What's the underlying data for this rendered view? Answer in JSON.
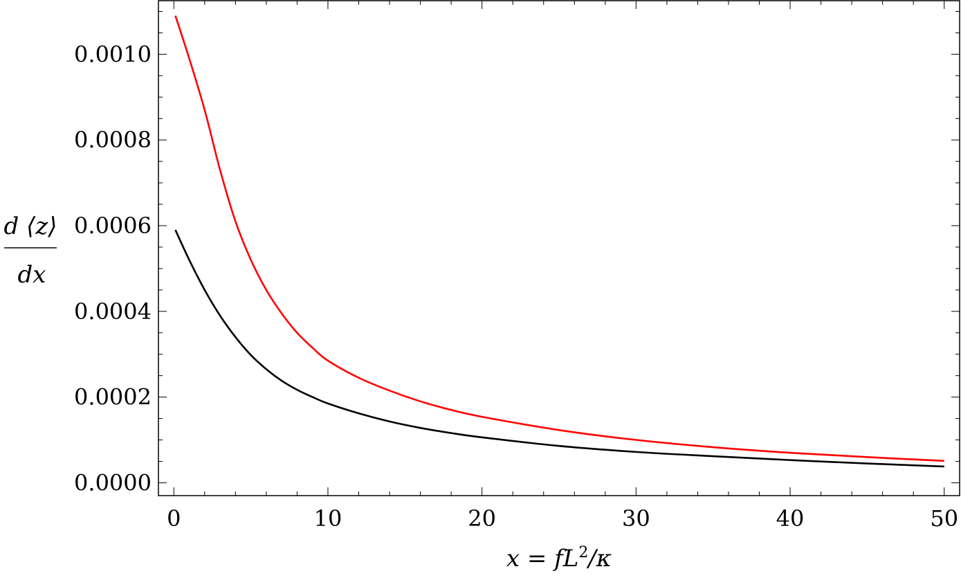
{
  "chart_data": {
    "type": "line",
    "title": "",
    "xlabel_parts": {
      "main": "x = fL",
      "sup": "2",
      "tail": "/κ"
    },
    "ylabel_parts": {
      "numerator": "d ⟨z⟩",
      "denominator": "dx"
    },
    "xlim": [
      -1,
      51
    ],
    "ylim": [
      -3e-05,
      0.001125
    ],
    "x_ticks": [
      0,
      10,
      20,
      30,
      40,
      50
    ],
    "x_tick_labels": [
      "0",
      "10",
      "20",
      "30",
      "40",
      "50"
    ],
    "y_ticks": [
      0,
      0.0002,
      0.0004,
      0.0006,
      0.0008,
      0.001
    ],
    "y_tick_labels": [
      "0.0000",
      "0.0002",
      "0.0004",
      "0.0006",
      "0.0008",
      "0.0010"
    ],
    "grid": false,
    "legend": "none",
    "series": [
      {
        "color": "#ff0000",
        "x": [
          0.1,
          1,
          2,
          3,
          4,
          5,
          6,
          7,
          8,
          9,
          10,
          12,
          14,
          16,
          18,
          20,
          25,
          30,
          35,
          40,
          45,
          50
        ],
        "y": [
          0.00109,
          0.00099,
          0.00087,
          0.00073,
          0.00061,
          0.00052,
          0.00045,
          0.000395,
          0.00035,
          0.000315,
          0.000285,
          0.000245,
          0.000215,
          0.00019,
          0.00017,
          0.000154,
          0.000123,
          0.0001,
          8.3e-05,
          7e-05,
          6e-05,
          5.1e-05
        ]
      },
      {
        "color": "#000000",
        "x": [
          0.1,
          1,
          2,
          3,
          4,
          5,
          6,
          7,
          8,
          9,
          10,
          12,
          14,
          16,
          18,
          20,
          25,
          30,
          35,
          40,
          45,
          50
        ],
        "y": [
          0.00059,
          0.00052,
          0.00045,
          0.00039,
          0.00034,
          0.000298,
          0.000265,
          0.000238,
          0.000217,
          0.0002,
          0.000185,
          0.000162,
          0.000143,
          0.000128,
          0.000116,
          0.000106,
          8.6e-05,
          7.2e-05,
          6.2e-05,
          5.3e-05,
          4.5e-05,
          3.8e-05
        ]
      }
    ]
  }
}
